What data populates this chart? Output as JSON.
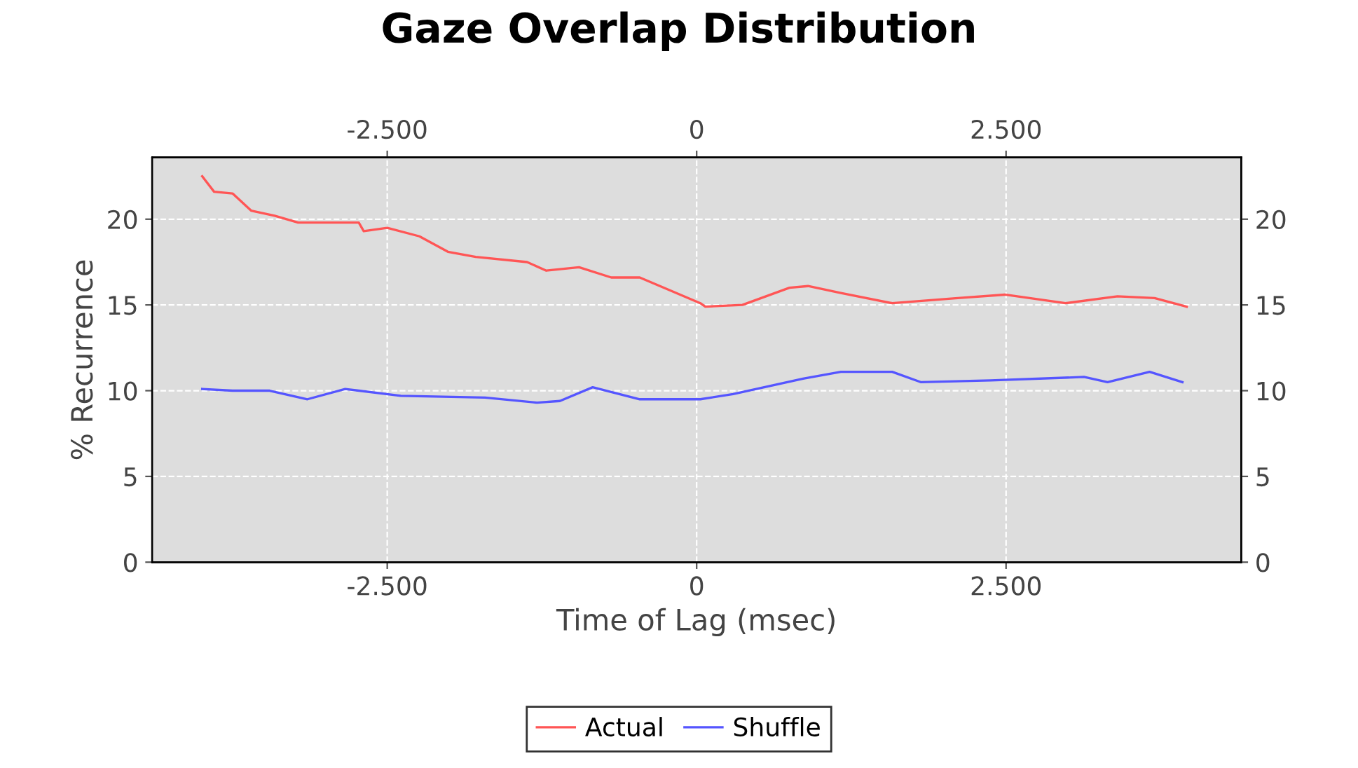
{
  "chart_data": {
    "type": "line",
    "title": "Gaze Overlap Distribution",
    "xlabel": "Time of Lag (msec)",
    "ylabel": "% Recurrence",
    "series": [
      {
        "name": "Actual",
        "color": "#ff5555",
        "x": [
          -3995,
          -3899,
          -3750,
          -3600,
          -3410,
          -3220,
          -2730,
          -2690,
          -2500,
          -2240,
          -2010,
          -1785,
          -1370,
          -1215,
          -950,
          -690,
          -460,
          30,
          70,
          370,
          750,
          900,
          1165,
          1580,
          2110,
          2490,
          2980,
          3400,
          3700,
          3960
        ],
        "values": [
          22.5,
          21.6,
          21.5,
          20.5,
          20.2,
          19.8,
          19.8,
          19.3,
          19.5,
          19.0,
          18.1,
          17.8,
          17.5,
          17.0,
          17.2,
          16.6,
          16.6,
          15.1,
          14.9,
          15.0,
          16.0,
          16.1,
          15.7,
          15.1,
          15.4,
          15.6,
          15.1,
          15.5,
          15.4,
          14.9
        ]
      },
      {
        "name": "Shuffle",
        "color": "#5555ff",
        "x": [
          -3995,
          -3750,
          -3450,
          -3145,
          -2840,
          -2390,
          -1710,
          -1290,
          -1105,
          -840,
          -460,
          30,
          295,
          860,
          1165,
          1580,
          1810,
          2375,
          3130,
          3320,
          3660,
          3925
        ],
        "values": [
          10.1,
          10.0,
          10.0,
          9.5,
          10.1,
          9.7,
          9.6,
          9.3,
          9.4,
          10.2,
          9.5,
          9.5,
          9.8,
          10.7,
          11.1,
          11.1,
          10.5,
          10.6,
          10.8,
          10.5,
          11.1,
          10.5
        ]
      }
    ],
    "xlim": [
      -4400,
      4400
    ],
    "xticks": [
      {
        "value": -2500,
        "label": "-2.500"
      },
      0,
      {
        "value": 2500,
        "label": "2.500"
      }
    ],
    "x2lim": [
      -4400,
      4400
    ],
    "x2ticks": [
      {
        "value": -2500,
        "label": "-2.500"
      },
      0,
      {
        "value": 2500,
        "label": "2.500"
      }
    ],
    "ylim": [
      0,
      23.6
    ],
    "yticks": [
      0,
      5,
      10,
      15,
      20
    ],
    "y2lim": [
      0,
      23.6
    ],
    "y2ticks": [
      0,
      5,
      10,
      15,
      20
    ],
    "grid": true,
    "legend": "bottom",
    "marker": "none",
    "line_style": "solid"
  }
}
